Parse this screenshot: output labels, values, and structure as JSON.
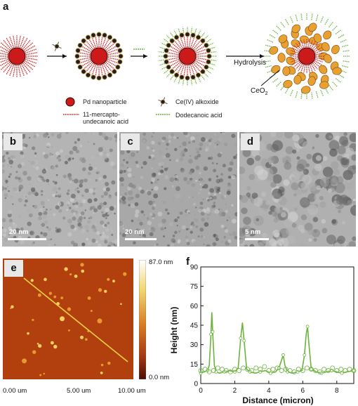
{
  "panel_a": {
    "label": "a",
    "arrow_text": "Hydrolysis",
    "ceo2_label": "CeO",
    "ceo2_sub": "2",
    "legend": {
      "pd": "Pd nanoparticle",
      "ce": "Ce(IV) alkoxide",
      "mua_line1": "11-mercapto-",
      "mua_line2": "undecanoic acid",
      "dda": "Dodecanoic acid"
    },
    "colors": {
      "pd": "#cc1a1a",
      "mua": "#cc2222",
      "dda": "#6db33f",
      "ceo2": "#e8a030",
      "alkoxide": "#2b2b3a"
    }
  },
  "panel_b": {
    "label": "b",
    "scale": "20 nm"
  },
  "panel_c": {
    "label": "c",
    "scale": "20 nm"
  },
  "panel_d": {
    "label": "d",
    "scale": "5 nm"
  },
  "panel_e": {
    "label": "e",
    "colorbar_max": "87.0 nm",
    "colorbar_min": "0.0 nm",
    "x_ticks": [
      "0.00 um",
      "5.00 um",
      "10.00 um"
    ]
  },
  "panel_f": {
    "label": "f"
  },
  "chart_data": {
    "type": "line",
    "xlabel": "Distance (micron)",
    "ylabel": "Height (nm)",
    "xlim": [
      0,
      9
    ],
    "ylim": [
      0,
      90
    ],
    "xticks": [
      "0",
      "2",
      "4",
      "6",
      "8"
    ],
    "yticks": [
      "0",
      "15",
      "30",
      "45",
      "60",
      "75",
      "90"
    ],
    "grid": false,
    "series": [
      {
        "color": "#6db33f",
        "x": [
          0.0,
          0.2,
          0.4,
          0.5,
          0.6,
          0.65,
          0.7,
          0.8,
          0.9,
          1.1,
          1.4,
          1.7,
          2.0,
          2.2,
          2.35,
          2.45,
          2.55,
          2.7,
          2.9,
          3.2,
          3.5,
          3.8,
          4.1,
          4.4,
          4.6,
          4.75,
          4.85,
          4.95,
          5.1,
          5.4,
          5.7,
          5.95,
          6.1,
          6.2,
          6.28,
          6.35,
          6.5,
          6.8,
          7.1,
          7.4,
          7.7,
          8.0,
          8.3,
          8.6,
          9.0
        ],
        "y": [
          8,
          9,
          10,
          14,
          38,
          55,
          40,
          14,
          9,
          8,
          9,
          10,
          9,
          12,
          35,
          47,
          33,
          11,
          9,
          8,
          9,
          10,
          8,
          9,
          12,
          18,
          22,
          14,
          9,
          8,
          9,
          10,
          22,
          38,
          44,
          32,
          11,
          9,
          8,
          9,
          10,
          9,
          8,
          9,
          10
        ]
      },
      {
        "color": "#6db33f",
        "style": "markers",
        "x": [
          0.0,
          0.25,
          0.5,
          0.75,
          1.0,
          1.25,
          1.5,
          1.75,
          2.0,
          2.25,
          2.5,
          2.75,
          3.0,
          3.25,
          3.5,
          3.75,
          4.0,
          4.25,
          4.5,
          4.75,
          5.0,
          5.25,
          5.5,
          5.75,
          6.0,
          6.25,
          6.5,
          6.75,
          7.0,
          7.25,
          7.5,
          7.75,
          8.0,
          8.25,
          8.5,
          8.75,
          9.0
        ],
        "y": [
          10,
          11,
          9,
          10,
          12,
          11,
          10,
          9,
          11,
          10,
          12,
          11,
          10,
          12,
          11,
          13,
          10,
          11,
          12,
          10,
          11,
          10,
          9,
          11,
          10,
          12,
          11,
          10,
          9,
          11,
          10,
          12,
          10,
          11,
          10,
          11,
          10
        ]
      }
    ]
  }
}
